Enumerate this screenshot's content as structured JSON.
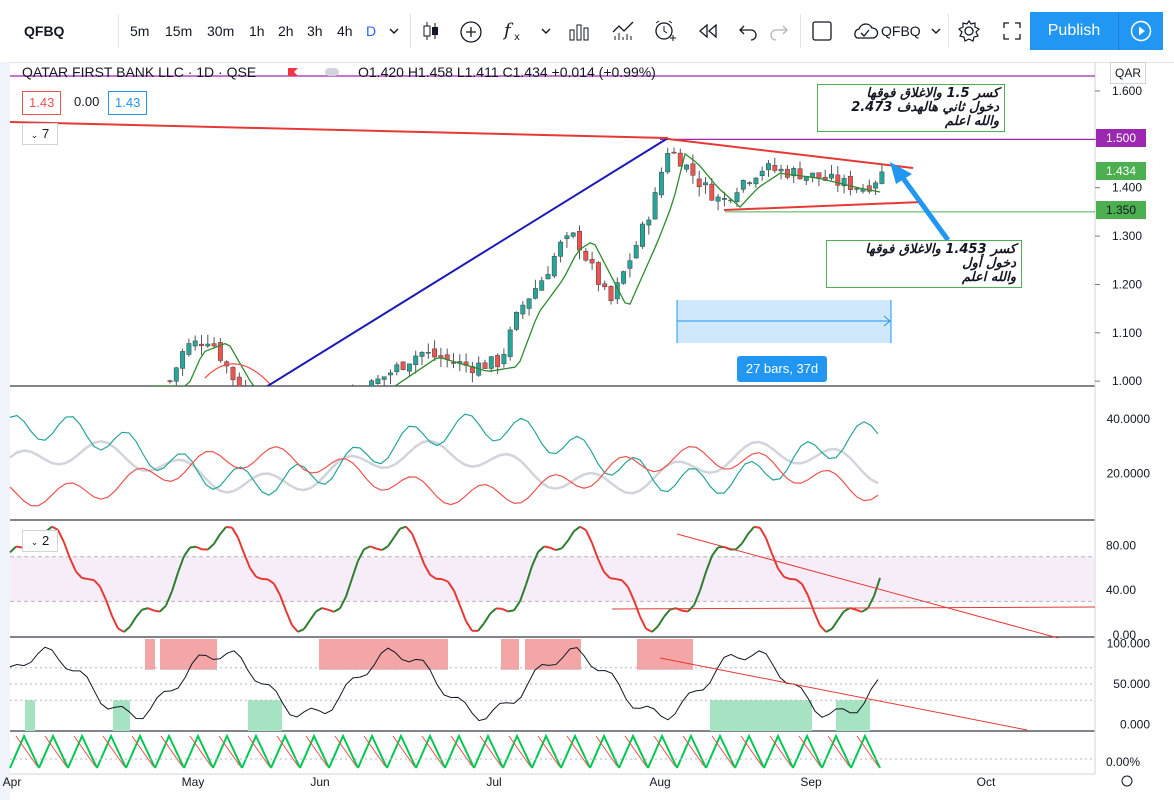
{
  "toolbar": {
    "symbol": "QFBQ",
    "intervals": [
      "5m",
      "15m",
      "30m",
      "1h",
      "2h",
      "3h",
      "4h",
      "D"
    ],
    "active_interval": "D",
    "compare_symbol": "QFBQ",
    "publish_label": "Publish"
  },
  "legend": {
    "title": "QATAR FIRST BANK LLC · 1D · QSE",
    "ohlc": "O1.420 H1.458 L1.411 C1.434 +0.014 (+0.99%)",
    "bid": "1.43",
    "spread": "0.00",
    "ask": "1.43",
    "ma_input": "7",
    "stoch_input": "2"
  },
  "currency": "QAR",
  "colors": {
    "up": "#26a69a",
    "down": "#ef5350",
    "red_line": "#e53935",
    "blue_curve": "#1a1ab8",
    "ma": "#2e8b2e",
    "purple": "#9c27b0",
    "green_level": "#4caf50",
    "accent": "#2196f3"
  },
  "annotations": {
    "top": [
      "كسر 1.5 والاغلاق فوقها",
      "دخول ثاني هالهدف 2.473",
      "والله اعلم"
    ],
    "bottom": [
      "كسر 1.453 والاغلاق فوقها",
      "دخول أول",
      "والله اعلم"
    ]
  },
  "price_tags": {
    "purple_level": "1.500",
    "last": "1.434",
    "green_level": "1.350"
  },
  "date_range_label": "27 bars, 37d",
  "chart_data": [
    {
      "type": "candlestick",
      "x_labels": [
        "Apr",
        "May",
        "Jun",
        "Jul",
        "Aug",
        "Sep",
        "Oct"
      ],
      "y_ticks": [
        "1.600",
        "1.500",
        "1.400",
        "1.300",
        "1.200",
        "1.100",
        "1.000"
      ],
      "ylim": [
        0.99,
        1.66
      ],
      "levels": {
        "resistance": 1.5,
        "support": 1.35,
        "last": 1.434
      },
      "last_ohlc": {
        "open": 1.42,
        "high": 1.458,
        "low": 1.411,
        "close": 1.434
      }
    },
    {
      "type": "line",
      "y_ticks": [
        "40.0000",
        "20.0000"
      ],
      "ylim": [
        3,
        52
      ],
      "series_colors": [
        "#26a69a",
        "#ef5350",
        "#d1d4dc"
      ]
    },
    {
      "type": "line",
      "y_ticks": [
        "80.00",
        "40.00",
        "0.00"
      ],
      "ylim": [
        -2,
        103
      ],
      "bands": [
        30,
        70
      ]
    },
    {
      "type": "line",
      "y_ticks": [
        "100.000",
        "50.000",
        "0.000"
      ],
      "ylim": [
        -8,
        108
      ]
    },
    {
      "type": "line",
      "y_ticks": [
        "0.00%"
      ],
      "series_colors": [
        "#00c853",
        "#ef5350"
      ]
    }
  ]
}
